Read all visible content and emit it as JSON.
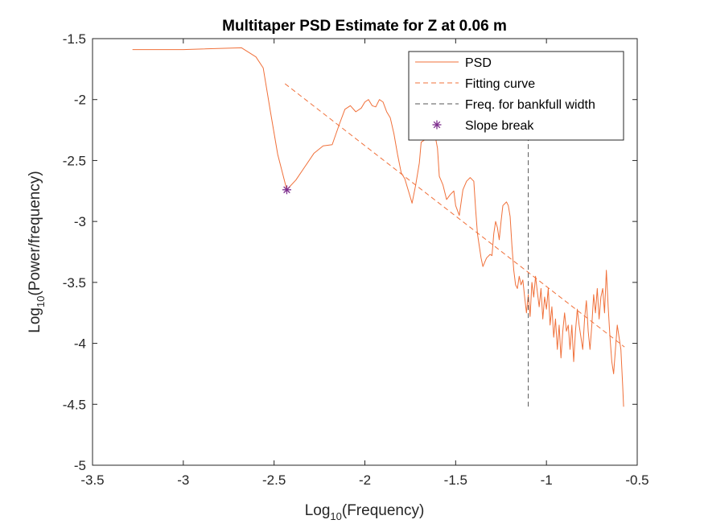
{
  "chart_data": {
    "type": "line",
    "title": "Multitaper PSD Estimate for Z at 0.06 m",
    "xlabel": {
      "base": "Log",
      "sub": "10",
      "rest": "(Frequency)"
    },
    "ylabel": {
      "base": "Log",
      "sub": "10",
      "rest": "(Power/frequency)"
    },
    "xlim": [
      -3.5,
      -0.5
    ],
    "ylim": [
      -5,
      -1.5
    ],
    "xticks": [
      -3.5,
      -3,
      -2.5,
      -2,
      -1.5,
      -1,
      -0.5
    ],
    "xtick_labels": [
      "-3.5",
      "-3",
      "-2.5",
      "-2",
      "-1.5",
      "-1",
      "-0.5"
    ],
    "yticks": [
      -5,
      -4.5,
      -4,
      -3.5,
      -3,
      -2.5,
      -2,
      -1.5
    ],
    "ytick_labels": [
      "-5",
      "-4.5",
      "-4",
      "-3.5",
      "-3",
      "-2.5",
      "-2",
      "-1.5"
    ],
    "grid": false,
    "legend_position": "top-right",
    "series": [
      {
        "name": "PSD",
        "style": "solid",
        "color": "#F0703A",
        "points": [
          [
            -3.28,
            -1.59
          ],
          [
            -3.0,
            -1.59
          ],
          [
            -2.68,
            -1.575
          ],
          [
            -2.6,
            -1.65
          ],
          [
            -2.56,
            -1.74
          ],
          [
            -2.52,
            -2.1
          ],
          [
            -2.48,
            -2.45
          ],
          [
            -2.43,
            -2.74
          ],
          [
            -2.38,
            -2.66
          ],
          [
            -2.33,
            -2.55
          ],
          [
            -2.28,
            -2.44
          ],
          [
            -2.23,
            -2.38
          ],
          [
            -2.18,
            -2.37
          ],
          [
            -2.14,
            -2.2
          ],
          [
            -2.11,
            -2.08
          ],
          [
            -2.08,
            -2.05
          ],
          [
            -2.05,
            -2.1
          ],
          [
            -2.02,
            -2.07
          ],
          [
            -2.0,
            -2.02
          ],
          [
            -1.98,
            -2.0
          ],
          [
            -1.96,
            -2.05
          ],
          [
            -1.94,
            -2.06
          ],
          [
            -1.92,
            -2.0
          ],
          [
            -1.9,
            -2.02
          ],
          [
            -1.88,
            -2.1
          ],
          [
            -1.86,
            -2.15
          ],
          [
            -1.84,
            -2.28
          ],
          [
            -1.82,
            -2.45
          ],
          [
            -1.8,
            -2.6
          ],
          [
            -1.78,
            -2.65
          ],
          [
            -1.76,
            -2.75
          ],
          [
            -1.74,
            -2.85
          ],
          [
            -1.72,
            -2.7
          ],
          [
            -1.7,
            -2.52
          ],
          [
            -1.69,
            -2.35
          ],
          [
            -1.67,
            -2.33
          ],
          [
            -1.65,
            -2.32
          ],
          [
            -1.63,
            -2.28
          ],
          [
            -1.61,
            -2.32
          ],
          [
            -1.6,
            -2.4
          ],
          [
            -1.59,
            -2.63
          ],
          [
            -1.57,
            -2.7
          ],
          [
            -1.55,
            -2.82
          ],
          [
            -1.53,
            -2.78
          ],
          [
            -1.51,
            -2.75
          ],
          [
            -1.5,
            -2.87
          ],
          [
            -1.48,
            -2.95
          ],
          [
            -1.46,
            -2.74
          ],
          [
            -1.44,
            -2.67
          ],
          [
            -1.42,
            -2.64
          ],
          [
            -1.4,
            -2.67
          ],
          [
            -1.39,
            -2.9
          ],
          [
            -1.38,
            -3.1
          ],
          [
            -1.36,
            -3.3
          ],
          [
            -1.35,
            -3.37
          ],
          [
            -1.33,
            -3.3
          ],
          [
            -1.31,
            -3.27
          ],
          [
            -1.3,
            -3.28
          ],
          [
            -1.29,
            -3.1
          ],
          [
            -1.28,
            -3.0
          ],
          [
            -1.27,
            -3.05
          ],
          [
            -1.26,
            -3.15
          ],
          [
            -1.25,
            -3.0
          ],
          [
            -1.24,
            -2.87
          ],
          [
            -1.22,
            -2.84
          ],
          [
            -1.21,
            -2.87
          ],
          [
            -1.2,
            -2.96
          ],
          [
            -1.19,
            -3.2
          ],
          [
            -1.18,
            -3.4
          ],
          [
            -1.17,
            -3.52
          ],
          [
            -1.16,
            -3.55
          ],
          [
            -1.15,
            -3.45
          ],
          [
            -1.14,
            -3.52
          ],
          [
            -1.13,
            -3.48
          ],
          [
            -1.12,
            -3.62
          ],
          [
            -1.11,
            -3.75
          ],
          [
            -1.1,
            -3.6
          ],
          [
            -1.09,
            -3.78
          ],
          [
            -1.08,
            -3.5
          ],
          [
            -1.07,
            -3.62
          ],
          [
            -1.06,
            -3.45
          ],
          [
            -1.05,
            -3.58
          ],
          [
            -1.04,
            -3.7
          ],
          [
            -1.03,
            -3.55
          ],
          [
            -1.02,
            -3.8
          ],
          [
            -1.01,
            -3.62
          ],
          [
            -1.0,
            -3.72
          ],
          [
            -0.99,
            -3.55
          ],
          [
            -0.98,
            -3.85
          ],
          [
            -0.97,
            -3.7
          ],
          [
            -0.96,
            -3.95
          ],
          [
            -0.95,
            -3.8
          ],
          [
            -0.94,
            -4.05
          ],
          [
            -0.93,
            -3.85
          ],
          [
            -0.92,
            -4.12
          ],
          [
            -0.91,
            -3.9
          ],
          [
            -0.9,
            -3.75
          ],
          [
            -0.89,
            -3.9
          ],
          [
            -0.88,
            -3.85
          ],
          [
            -0.87,
            -4.05
          ],
          [
            -0.86,
            -3.85
          ],
          [
            -0.85,
            -4.15
          ],
          [
            -0.84,
            -3.9
          ],
          [
            -0.83,
            -3.72
          ],
          [
            -0.82,
            -3.85
          ],
          [
            -0.81,
            -3.95
          ],
          [
            -0.8,
            -4.05
          ],
          [
            -0.79,
            -3.8
          ],
          [
            -0.78,
            -3.65
          ],
          [
            -0.77,
            -3.9
          ],
          [
            -0.76,
            -4.05
          ],
          [
            -0.75,
            -3.85
          ],
          [
            -0.74,
            -3.6
          ],
          [
            -0.73,
            -3.75
          ],
          [
            -0.72,
            -3.55
          ],
          [
            -0.71,
            -3.8
          ],
          [
            -0.7,
            -3.62
          ],
          [
            -0.69,
            -3.55
          ],
          [
            -0.68,
            -3.75
          ],
          [
            -0.67,
            -3.4
          ],
          [
            -0.66,
            -3.7
          ],
          [
            -0.65,
            -3.95
          ],
          [
            -0.64,
            -4.15
          ],
          [
            -0.63,
            -4.25
          ],
          [
            -0.62,
            -4.05
          ],
          [
            -0.61,
            -3.85
          ],
          [
            -0.6,
            -3.95
          ],
          [
            -0.59,
            -4.05
          ],
          [
            -0.585,
            -4.2
          ],
          [
            -0.58,
            -4.35
          ],
          [
            -0.575,
            -4.52
          ]
        ]
      },
      {
        "name": "Fitting curve",
        "style": "dashed",
        "color": "#F0703A",
        "points": [
          [
            -2.44,
            -1.87
          ],
          [
            -0.57,
            -4.03
          ]
        ]
      },
      {
        "name": "Freq. for bankfull width",
        "style": "dashed",
        "color": "#555555",
        "points": [
          [
            -1.1,
            -2.3
          ],
          [
            -1.1,
            -4.53
          ]
        ]
      },
      {
        "name": "Slope break",
        "style": "marker",
        "marker": "asterisk",
        "color": "#7E2F8E",
        "points": [
          [
            -2.43,
            -2.74
          ]
        ]
      }
    ]
  }
}
